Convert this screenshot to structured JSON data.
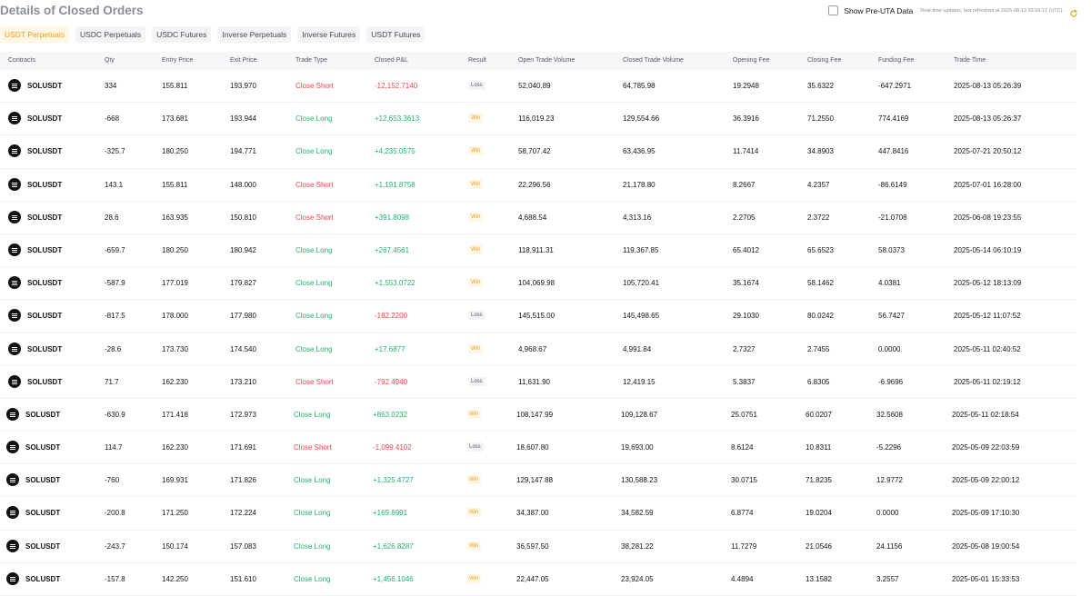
{
  "page_title": "Details of Closed Orders",
  "uta_toggle": {
    "label": "Show Pre-UTA Data",
    "note": "Real-time updates, last refreshed at 2025-08-13 03:59:17 (UTC)."
  },
  "tabs": [
    {
      "label": "USDT Perpetuals",
      "active": true
    },
    {
      "label": "USDC Perpetuals",
      "active": false
    },
    {
      "label": "USDC Futures",
      "active": false
    },
    {
      "label": "Inverse Perpetuals",
      "active": false
    },
    {
      "label": "Inverse Futures",
      "active": false
    },
    {
      "label": "USDT Futures",
      "active": false
    }
  ],
  "table": {
    "headers": [
      "Contracts",
      "Qty",
      "Entry Price",
      "Exit Price",
      "Trade Type",
      "Closed P&L",
      "Result",
      "Open Trade Volume",
      "Closed Trade Volume",
      "Opening Fee",
      "Closing Fee",
      "Funding Fee",
      "Trade Time"
    ],
    "rows": [
      [
        "SOLUSDT",
        "334",
        "155.811",
        "193.970",
        "Close Short",
        "-12,152.7140",
        "Loss",
        "52,040.89",
        "64,785.98",
        "19.2948",
        "35.6322",
        "-647.2971",
        "2025-08-13 05:26:39"
      ],
      [
        "SOLUSDT",
        "-668",
        "173.681",
        "193.944",
        "Close Long",
        "+12,653.3613",
        "Win",
        "116,019.23",
        "129,554.66",
        "36.3916",
        "71.2550",
        "774.4169",
        "2025-08-13 05:26:37"
      ],
      [
        "SOLUSDT",
        "-325.7",
        "180.250",
        "194.771",
        "Close Long",
        "+4,235.0575",
        "Win",
        "58,707.42",
        "63,436.95",
        "11.7414",
        "34.8903",
        "447.8416",
        "2025-07-21 20:50:12"
      ],
      [
        "SOLUSDT",
        "143.1",
        "155.811",
        "148.000",
        "Close Short",
        "+1,191.8758",
        "Win",
        "22,296.56",
        "21,178.80",
        "8.2667",
        "4.2357",
        "-86.6149",
        "2025-07-01 16:28:00"
      ],
      [
        "SOLUSDT",
        "28.6",
        "163.935",
        "150.810",
        "Close Short",
        "+391.8098",
        "Win",
        "4,688.54",
        "4,313.16",
        "2.2705",
        "2.3722",
        "-21.0708",
        "2025-06-08 19:23:55"
      ],
      [
        "SOLUSDT",
        "-659.7",
        "180.250",
        "180.942",
        "Close Long",
        "+267.4561",
        "Win",
        "118,911.31",
        "119,367.85",
        "65.4012",
        "65.6523",
        "58.0373",
        "2025-05-14 06:10:19"
      ],
      [
        "SOLUSDT",
        "-587.9",
        "177.019",
        "179.827",
        "Close Long",
        "+1,553.0722",
        "Win",
        "104,069.98",
        "105,720.41",
        "35.1674",
        "58.1462",
        "4.0381",
        "2025-05-12 18:13:09"
      ],
      [
        "SOLUSDT",
        "-817.5",
        "178.000",
        "177.980",
        "Close Long",
        "-182.2200",
        "Loss",
        "145,515.00",
        "145,498.65",
        "29.1030",
        "80.0242",
        "56.7427",
        "2025-05-12 11:07:52"
      ],
      [
        "SOLUSDT",
        "-28.6",
        "173.730",
        "174.540",
        "Close Long",
        "+17.6877",
        "Win",
        "4,968.67",
        "4,991.84",
        "2.7327",
        "2.7455",
        "0.0000",
        "2025-05-11 02:40:52"
      ],
      [
        "SOLUSDT",
        "71.7",
        "162.230",
        "173.210",
        "Close Short",
        "-792.4940",
        "Loss",
        "11,631.90",
        "12,419.15",
        "5.3837",
        "6.8305",
        "-6.9696",
        "2025-05-11 02:19:12"
      ],
      [
        "SOLUSDT",
        "-630.9",
        "171.418",
        "172.973",
        "Close Long",
        "+863.0232",
        "Win",
        "108,147.99",
        "109,128.67",
        "25.0751",
        "60.0207",
        "32.5608",
        "2025-05-11 02:18:54"
      ],
      [
        "SOLUSDT",
        "114.7",
        "162.230",
        "171.691",
        "Close Short",
        "-1,099.4102",
        "Loss",
        "18,607.80",
        "19,693.00",
        "8.6124",
        "10.8311",
        "-5.2296",
        "2025-05-09 22:03:59"
      ],
      [
        "SOLUSDT",
        "-760",
        "169.931",
        "171.826",
        "Close Long",
        "+1,325.4727",
        "Win",
        "129,147.88",
        "130,588.23",
        "30.0715",
        "71.8235",
        "12.9772",
        "2025-05-09 22:00:12"
      ],
      [
        "SOLUSDT",
        "-200.8",
        "171.250",
        "172.224",
        "Close Long",
        "+169.6991",
        "Win",
        "34,387.00",
        "34,582.59",
        "6.8774",
        "19.0204",
        "0.0000",
        "2025-05-09 17:10:30"
      ],
      [
        "SOLUSDT",
        "-243.7",
        "150.174",
        "157.083",
        "Close Long",
        "+1,626.8287",
        "Win",
        "36,597.50",
        "38,281.22",
        "11.7279",
        "21.0546",
        "24.1156",
        "2025-05-08 19:00:54"
      ],
      [
        "SOLUSDT",
        "-157.8",
        "142.250",
        "151.610",
        "Close Long",
        "+1,456.1046",
        "Win",
        "22,447.05",
        "23,924.05",
        "4.4894",
        "13.1582",
        "3.2557",
        "2025-05-01 15:33:53"
      ]
    ]
  },
  "colors": {
    "profit": "#20b26c",
    "loss": "#ef454a",
    "accent": "#e8a312"
  },
  "icons": {
    "contract": "sol-coin-icon",
    "refresh": "refresh-icon"
  }
}
